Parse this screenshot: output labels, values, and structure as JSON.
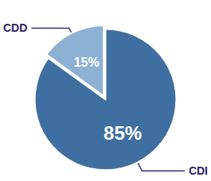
{
  "chart_data": {
    "type": "pie",
    "categories": [
      "CDI",
      "CDD"
    ],
    "values": [
      85,
      15
    ],
    "value_labels": [
      "85%",
      "15%"
    ],
    "colors": [
      "#3f6fa0",
      "#8db1d3"
    ],
    "data_labels": true
  }
}
